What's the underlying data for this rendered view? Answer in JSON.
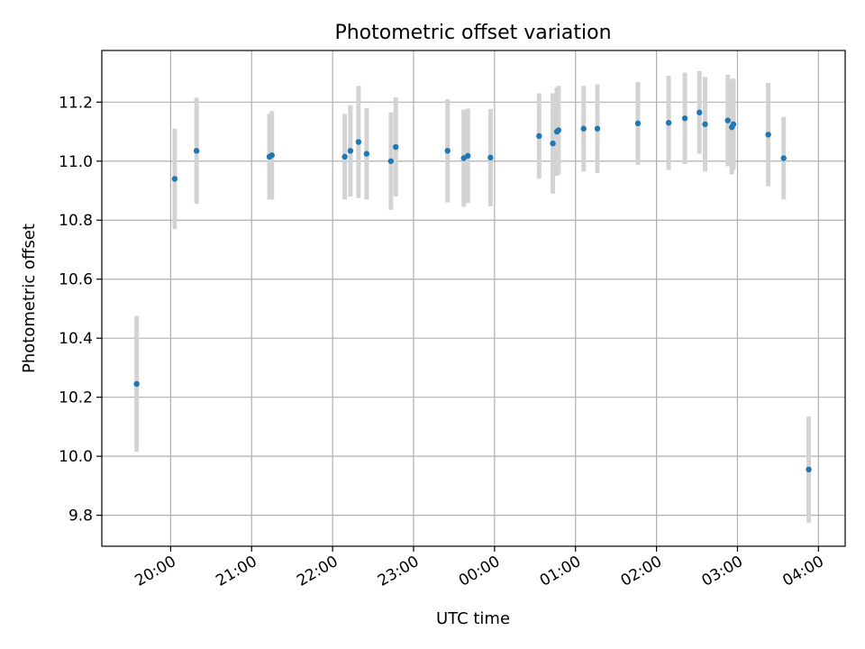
{
  "chart_data": {
    "type": "scatter",
    "title": "Photometric offset variation",
    "xlabel": "UTC time",
    "ylabel": "Photometric offset",
    "grid": true,
    "x_tick_labels": [
      "20:00",
      "21:00",
      "22:00",
      "23:00",
      "00:00",
      "01:00",
      "02:00",
      "03:00",
      "04:00"
    ],
    "x_tick_hours": [
      20,
      21,
      22,
      23,
      24,
      25,
      26,
      27,
      28
    ],
    "x_axis_note": "hours since 00:00 of the first day; values >= 24 are after midnight",
    "xlim_hours": [
      19.15,
      28.33
    ],
    "y_ticks": [
      9.8,
      10.0,
      10.2,
      10.4,
      10.6,
      10.8,
      11.0,
      11.2
    ],
    "y_tick_labels": [
      "9.8",
      "10.0",
      "10.2",
      "10.4",
      "10.6",
      "10.8",
      "11.0",
      "11.2"
    ],
    "ylim": [
      9.695,
      11.375
    ],
    "colors": {
      "point": "#1f77b4",
      "errorbar": "#d3d3d3"
    },
    "points": [
      {
        "t": 19.58,
        "y": 10.245,
        "err": 0.23
      },
      {
        "t": 20.05,
        "y": 10.94,
        "err": 0.17
      },
      {
        "t": 20.32,
        "y": 11.035,
        "err": 0.18
      },
      {
        "t": 21.22,
        "y": 11.015,
        "err": 0.145
      },
      {
        "t": 21.25,
        "y": 11.02,
        "err": 0.15
      },
      {
        "t": 22.15,
        "y": 11.015,
        "err": 0.145
      },
      {
        "t": 22.22,
        "y": 11.035,
        "err": 0.155
      },
      {
        "t": 22.32,
        "y": 11.065,
        "err": 0.19
      },
      {
        "t": 22.42,
        "y": 11.025,
        "err": 0.155
      },
      {
        "t": 22.72,
        "y": 11.0,
        "err": 0.165
      },
      {
        "t": 22.78,
        "y": 11.048,
        "err": 0.168
      },
      {
        "t": 23.42,
        "y": 11.035,
        "err": 0.175
      },
      {
        "t": 23.62,
        "y": 11.01,
        "err": 0.165
      },
      {
        "t": 23.67,
        "y": 11.018,
        "err": 0.16
      },
      {
        "t": 23.95,
        "y": 11.012,
        "err": 0.165
      },
      {
        "t": 24.55,
        "y": 11.085,
        "err": 0.145
      },
      {
        "t": 24.72,
        "y": 11.06,
        "err": 0.17
      },
      {
        "t": 24.77,
        "y": 11.1,
        "err": 0.15
      },
      {
        "t": 24.79,
        "y": 11.105,
        "err": 0.15
      },
      {
        "t": 25.1,
        "y": 11.11,
        "err": 0.145
      },
      {
        "t": 25.27,
        "y": 11.11,
        "err": 0.15
      },
      {
        "t": 25.77,
        "y": 11.128,
        "err": 0.14
      },
      {
        "t": 26.15,
        "y": 11.13,
        "err": 0.16
      },
      {
        "t": 26.35,
        "y": 11.145,
        "err": 0.155
      },
      {
        "t": 26.53,
        "y": 11.165,
        "err": 0.14
      },
      {
        "t": 26.6,
        "y": 11.125,
        "err": 0.16
      },
      {
        "t": 26.88,
        "y": 11.138,
        "err": 0.155
      },
      {
        "t": 26.93,
        "y": 11.115,
        "err": 0.16
      },
      {
        "t": 26.95,
        "y": 11.125,
        "err": 0.155
      },
      {
        "t": 27.38,
        "y": 11.09,
        "err": 0.175
      },
      {
        "t": 27.57,
        "y": 11.01,
        "err": 0.14
      },
      {
        "t": 27.88,
        "y": 9.955,
        "err": 0.18
      }
    ]
  }
}
